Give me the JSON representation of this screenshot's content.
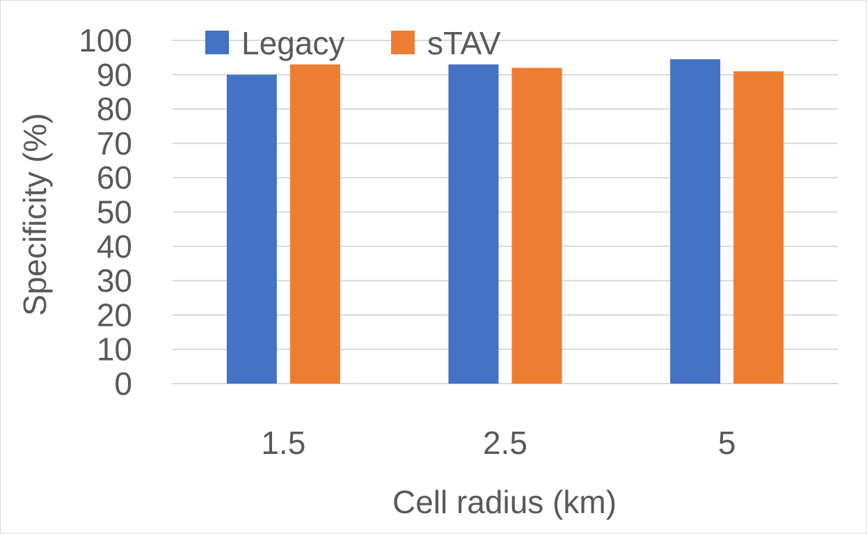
{
  "chart_data": {
    "type": "bar",
    "title": "",
    "xlabel": "Cell radius (km)",
    "ylabel": "Specificity (%)",
    "categories": [
      "1.5",
      "2.5",
      "5"
    ],
    "ylim": [
      0,
      100
    ],
    "yticks": [
      0,
      10,
      20,
      30,
      40,
      50,
      60,
      70,
      80,
      90,
      100
    ],
    "grid": true,
    "legend_position": "top-left",
    "series": [
      {
        "name": "Legacy",
        "color": "#4472C4",
        "values": [
          90,
          93,
          94.5
        ]
      },
      {
        "name": "sTAV",
        "color": "#ED7D31",
        "values": [
          93,
          92,
          91
        ]
      }
    ]
  }
}
